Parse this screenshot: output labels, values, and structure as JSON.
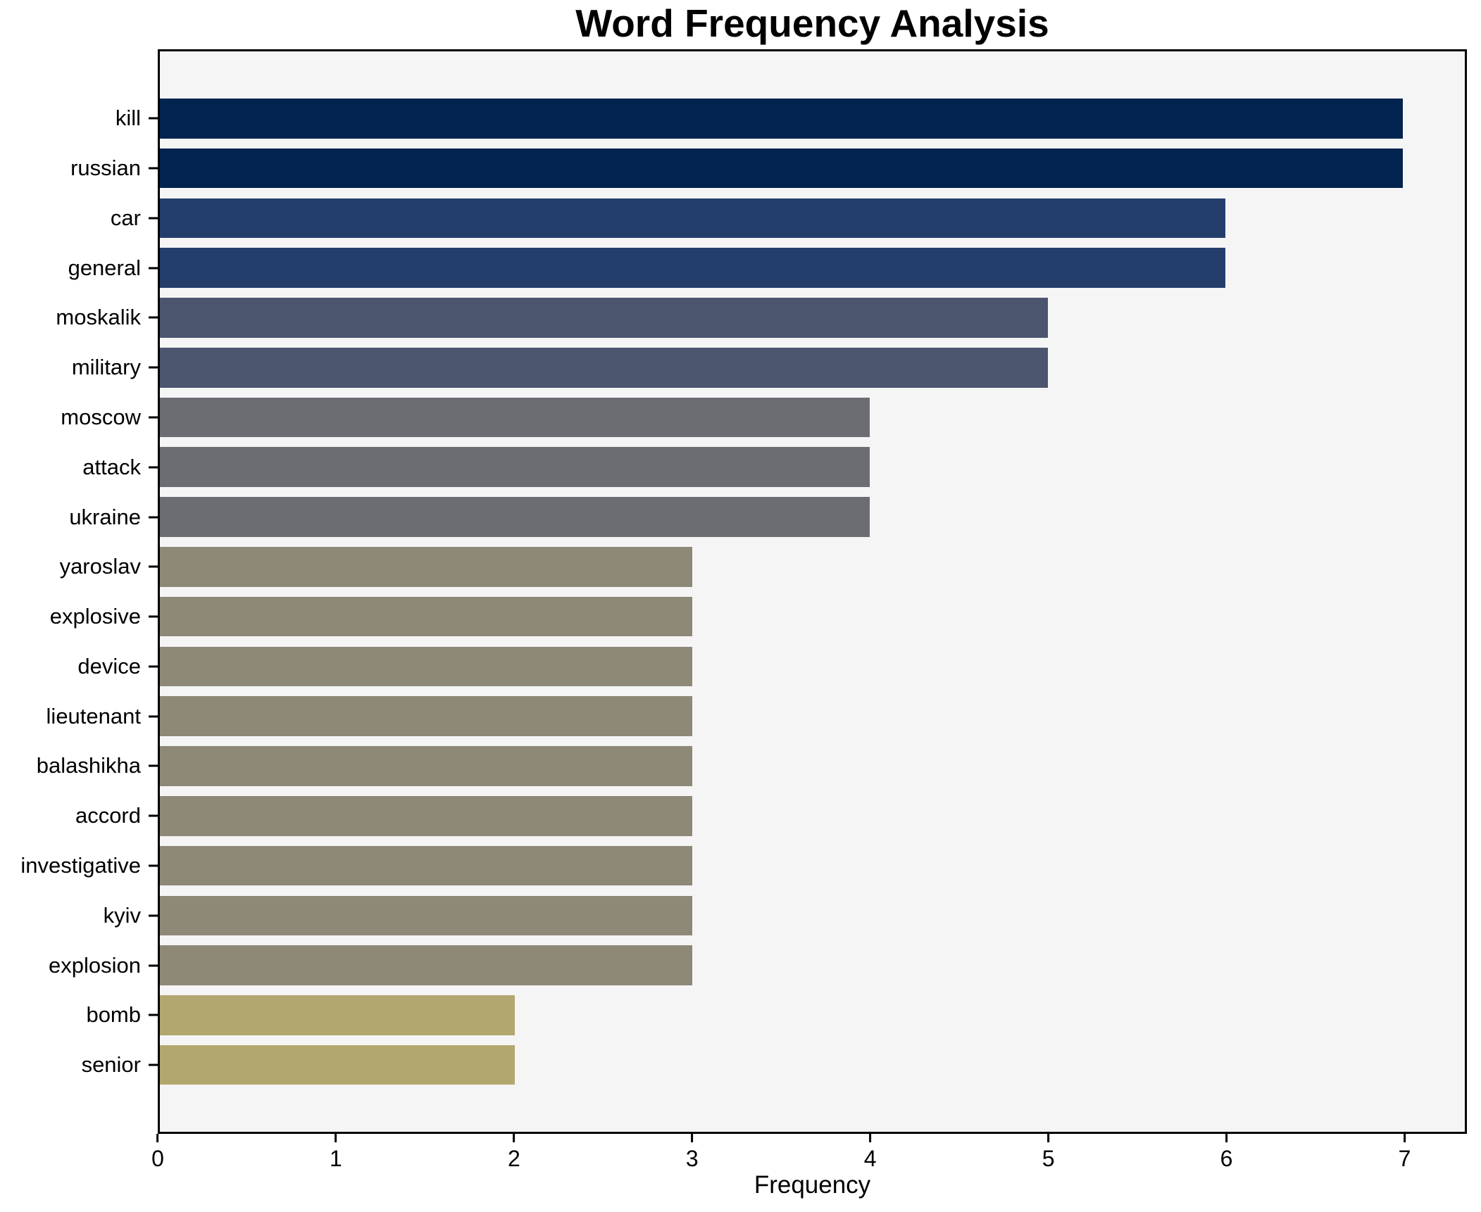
{
  "chart_data": {
    "type": "bar",
    "orientation": "horizontal",
    "title": "Word Frequency Analysis",
    "xlabel": "Frequency",
    "ylabel": "",
    "categories": [
      "kill",
      "russian",
      "car",
      "general",
      "moskalik",
      "military",
      "moscow",
      "attack",
      "ukraine",
      "yaroslav",
      "explosive",
      "device",
      "lieutenant",
      "balashikha",
      "accord",
      "investigative",
      "kyiv",
      "explosion",
      "bomb",
      "senior"
    ],
    "values": [
      7,
      7,
      6,
      6,
      5,
      5,
      4,
      4,
      4,
      3,
      3,
      3,
      3,
      3,
      3,
      3,
      3,
      3,
      2,
      2
    ],
    "bar_colors": [
      "#02234e",
      "#02234e",
      "#243e6c",
      "#243e6c",
      "#4c556e",
      "#4c556e",
      "#6b6d72",
      "#6b6d72",
      "#6b6d72",
      "#8e8877",
      "#8e8877",
      "#8e8877",
      "#8e8877",
      "#8e8877",
      "#8e8877",
      "#8e8877",
      "#8e8877",
      "#8e8877",
      "#b2a76e",
      "#b2a76e"
    ],
    "xlim": [
      0,
      7.35
    ],
    "x_ticks": [
      0,
      1,
      2,
      3,
      4,
      5,
      6,
      7
    ],
    "grid": false,
    "legend_position": "none",
    "plot_bg": "#f5f5f6",
    "figure_bg": "#ffffff",
    "colormap": "cividis"
  }
}
